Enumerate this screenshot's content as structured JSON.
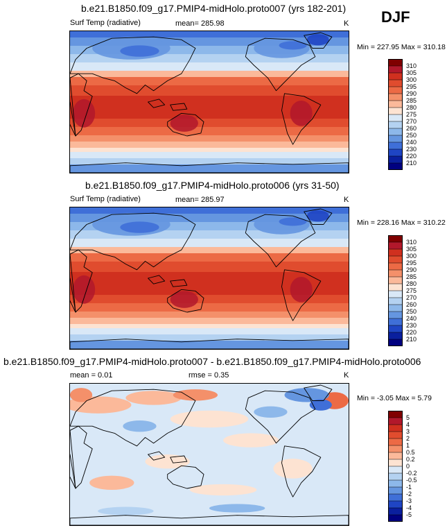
{
  "season": "DJF",
  "panels": [
    {
      "title": "b.e21.B1850.f09_g17.PMIP4-midHolo.proto007 (yrs 182-201)",
      "left_label": "Surf Temp (radiative)",
      "center_label": "mean= 285.98",
      "units": "K",
      "minmax": "Min = 227.95 Max = 310.18"
    },
    {
      "title": "b.e21.B1850.f09_g17.PMIP4-midHolo.proto006 (yrs 31-50)",
      "left_label": "Surf Temp (radiative)",
      "center_label": "mean= 285.97",
      "units": "K",
      "minmax": "Min = 228.16 Max = 310.22"
    },
    {
      "title": "b.e21.B1850.f09_g17.PMIP4-midHolo.proto007 - b.e21.B1850.f09_g17.PMIP4-midHolo.proto006",
      "left_label": "mean =   0.01",
      "center_label": "rmse =   0.35",
      "units": "K",
      "minmax": "Min =  -3.05 Max =   5.79"
    }
  ],
  "chart_data": [
    {
      "type": "heatmap",
      "title": "b.e21.B1850.f09_g17.PMIP4-midHolo.proto007 (yrs 182-201)",
      "variable": "Surf Temp (radiative)",
      "units": "K",
      "mean": 285.98,
      "min": 227.95,
      "max": 310.18,
      "colorbar_levels": [
        "310",
        "305",
        "300",
        "295",
        "290",
        "285",
        "280",
        "275",
        "270",
        "260",
        "250",
        "240",
        "230",
        "220",
        "210"
      ],
      "colorbar_colors": [
        "#800000",
        "#b2182b",
        "#d0301f",
        "#e04c2e",
        "#ec6a45",
        "#f4906a",
        "#fbb99a",
        "#fde3d2",
        "#d9e8f7",
        "#b4d2f1",
        "#8db8ea",
        "#6596e0",
        "#3f6fd8",
        "#1f45c4",
        "#0a1f9e",
        "#000080"
      ]
    },
    {
      "type": "heatmap",
      "title": "b.e21.B1850.f09_g17.PMIP4-midHolo.proto006 (yrs 31-50)",
      "variable": "Surf Temp (radiative)",
      "units": "K",
      "mean": 285.97,
      "min": 228.16,
      "max": 310.22,
      "colorbar_levels": [
        "310",
        "305",
        "300",
        "295",
        "290",
        "285",
        "280",
        "275",
        "270",
        "260",
        "250",
        "240",
        "230",
        "220",
        "210"
      ],
      "colorbar_colors": [
        "#800000",
        "#b2182b",
        "#d0301f",
        "#e04c2e",
        "#ec6a45",
        "#f4906a",
        "#fbb99a",
        "#fde3d2",
        "#d9e8f7",
        "#b4d2f1",
        "#8db8ea",
        "#6596e0",
        "#3f6fd8",
        "#1f45c4",
        "#0a1f9e",
        "#000080"
      ]
    },
    {
      "type": "heatmap",
      "title": "b.e21.B1850.f09_g17.PMIP4-midHolo.proto007 - b.e21.B1850.f09_g17.PMIP4-midHolo.proto006",
      "units": "K",
      "mean": 0.01,
      "rmse": 0.35,
      "min": -3.05,
      "max": 5.79,
      "colorbar_levels": [
        "5",
        "4",
        "3",
        "2",
        "1",
        "0.5",
        "0.2",
        "0",
        "-0.2",
        "-0.5",
        "-1",
        "-2",
        "-3",
        "-4",
        "-5"
      ],
      "colorbar_colors": [
        "#800000",
        "#b2182b",
        "#d0301f",
        "#e04c2e",
        "#ec6a45",
        "#f4906a",
        "#fbb99a",
        "#fde3d2",
        "#d9e8f7",
        "#b4d2f1",
        "#8db8ea",
        "#6596e0",
        "#3f6fd8",
        "#1f45c4",
        "#0a1f9e",
        "#000080"
      ]
    }
  ]
}
